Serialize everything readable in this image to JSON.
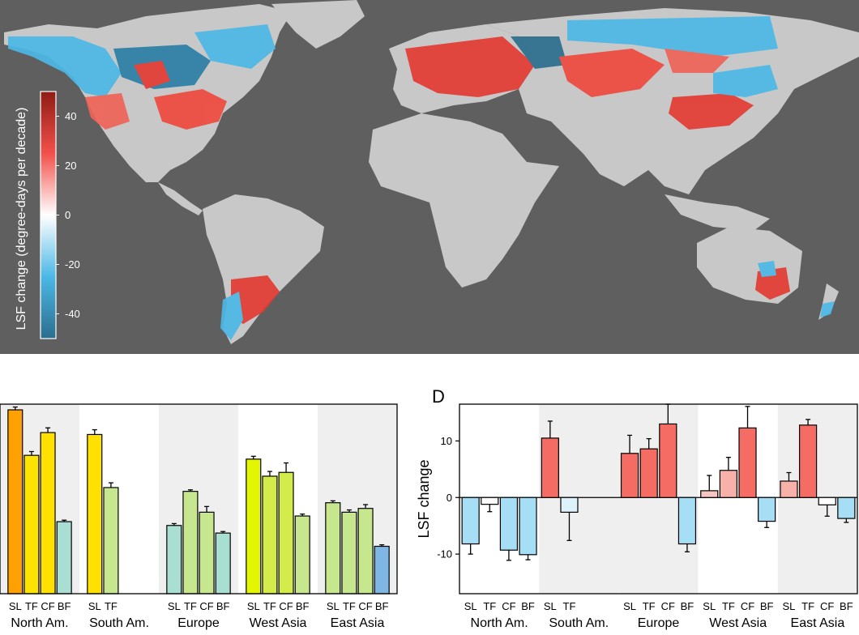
{
  "map": {
    "colorbar": {
      "title": "LSF change (degree-days per decade)",
      "ticks": [
        40,
        20,
        0,
        -20,
        -40
      ],
      "range": [
        -50,
        50
      ],
      "colors": [
        "#2b6e8f",
        "#4cb8e6",
        "#ffffff",
        "#f2504a",
        "#8e1c14"
      ]
    },
    "colors": {
      "ocean": "#5f5f5f",
      "land": "#c8c8c8"
    }
  },
  "chart_data": [
    {
      "type": "bar",
      "panel_label": "",
      "ylabel": "",
      "regions": [
        {
          "name": "North Am.",
          "categories": [
            "SL",
            "TF",
            "CF",
            "BF"
          ],
          "values": [
            97,
            73,
            85,
            38
          ],
          "errors": [
            1.5,
            2,
            2.5,
            0.8
          ],
          "colors": [
            "#ffa100",
            "#fde300",
            "#ffe000",
            "#a9ded3"
          ],
          "shaded": true
        },
        {
          "name": "South Am.",
          "categories": [
            "SL",
            "TF"
          ],
          "values": [
            84,
            56
          ],
          "errors": [
            2.5,
            2.5
          ],
          "colors": [
            "#ffe000",
            "#c7e78f"
          ],
          "shaded": false
        },
        {
          "name": "Europe",
          "categories": [
            "SL",
            "TF",
            "CF",
            "BF"
          ],
          "values": [
            36,
            54,
            43,
            32
          ],
          "errors": [
            1,
            0.8,
            3,
            0.8
          ],
          "colors": [
            "#a9ded3",
            "#c7e78f",
            "#c7e78f",
            "#a9ded3"
          ],
          "shaded": true
        },
        {
          "name": "West Asia",
          "categories": [
            "SL",
            "TF",
            "CF",
            "BF"
          ],
          "values": [
            71,
            62,
            64,
            41
          ],
          "errors": [
            1.5,
            2.5,
            5,
            1
          ],
          "colors": [
            "#e3f500",
            "#d3ec4c",
            "#d3ec4c",
            "#c7e78f"
          ],
          "shaded": false
        },
        {
          "name": "East Asia",
          "categories": [
            "SL",
            "TF",
            "CF",
            "BF"
          ],
          "values": [
            48,
            43,
            45,
            25
          ],
          "errors": [
            1,
            1.2,
            2,
            0.8
          ],
          "colors": [
            "#c7e78f",
            "#c7e78f",
            "#c7e78f",
            "#7eb6e4"
          ],
          "shaded": true
        }
      ],
      "ylim": [
        0,
        100
      ]
    },
    {
      "type": "bar",
      "panel_label": "D",
      "ylabel": "LSF change",
      "yticks": [
        10,
        0,
        -10
      ],
      "ylim": [
        -17,
        16.5
      ],
      "regions": [
        {
          "name": "North Am.",
          "categories": [
            "SL",
            "TF",
            "CF",
            "BF"
          ],
          "values": [
            -8.2,
            -1.2,
            -9.3,
            -10.1
          ],
          "errors": [
            1.8,
            1.3,
            1.8,
            0.9
          ],
          "colors": [
            "#a6def5",
            "#ffffff",
            "#a6def5",
            "#a6def5"
          ],
          "shaded": false
        },
        {
          "name": "South Am.",
          "categories": [
            "SL",
            "TF"
          ],
          "values": [
            10.5,
            -2.6
          ],
          "errors": [
            3,
            5
          ],
          "colors": [
            "#f46c63",
            "#ddf2fb"
          ],
          "shaded": true
        },
        {
          "name": "Europe",
          "categories": [
            "SL",
            "TF",
            "CF",
            "BF"
          ],
          "values": [
            7.8,
            8.6,
            13,
            -8.2
          ],
          "errors": [
            3.2,
            1.8,
            3.5,
            1.4
          ],
          "colors": [
            "#f46c63",
            "#f46c63",
            "#f46c63",
            "#a6def5"
          ],
          "shaded": true
        },
        {
          "name": "West Asia",
          "categories": [
            "SL",
            "TF",
            "CF",
            "BF"
          ],
          "values": [
            1.2,
            4.8,
            12.3,
            -4.2
          ],
          "errors": [
            2.7,
            2.3,
            3.8,
            1.1
          ],
          "colors": [
            "#f7c6c0",
            "#f7b1a9",
            "#f46c63",
            "#a6def5"
          ],
          "shaded": false
        },
        {
          "name": "East Asia",
          "categories": [
            "SL",
            "TF",
            "CF",
            "BF"
          ],
          "values": [
            2.9,
            12.8,
            -1.3,
            -3.7
          ],
          "errors": [
            1.5,
            1,
            2,
            0.7
          ],
          "colors": [
            "#f7b1a9",
            "#f46c63",
            "#ffffff",
            "#a6def5"
          ],
          "shaded": true
        }
      ]
    }
  ]
}
